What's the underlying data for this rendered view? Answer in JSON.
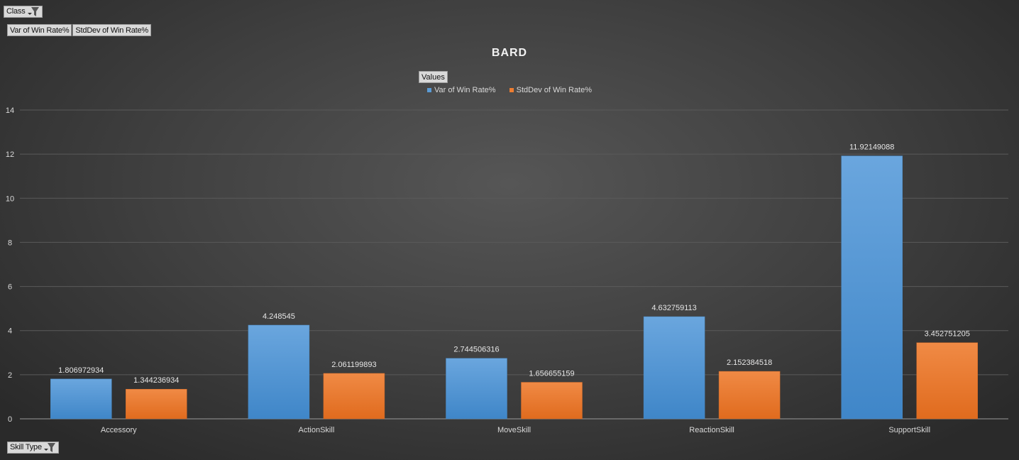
{
  "filters": {
    "class_label": "Class",
    "skill_type_label": "Skill Type"
  },
  "value_fields": [
    "Var of Win Rate%",
    "StdDev of Win Rate%"
  ],
  "legend_button": "Values",
  "colors": {
    "var": "#5b9bd5",
    "std": "#ed7d31"
  },
  "chart_data": {
    "type": "bar",
    "title": "BARD",
    "categories": [
      "Accessory",
      "ActionSkill",
      "MoveSkill",
      "ReactionSkill",
      "SupportSkill"
    ],
    "series": [
      {
        "name": "Var of Win Rate%",
        "values": [
          1.806972934,
          4.248545,
          2.744506316,
          4.632759113,
          11.92149088
        ],
        "labels": [
          "1.806972934",
          "4.248545",
          "2.744506316",
          "4.632759113",
          "11.92149088"
        ]
      },
      {
        "name": "StdDev of Win Rate%",
        "values": [
          1.344236934,
          2.061199893,
          1.656655159,
          2.152384518,
          3.452751205
        ],
        "labels": [
          "1.344236934",
          "2.061199893",
          "1.656655159",
          "2.152384518",
          "3.452751205"
        ]
      }
    ],
    "ylim": [
      0,
      14
    ],
    "yticks": [
      "0",
      "2",
      "4",
      "6",
      "8",
      "10",
      "12",
      "14"
    ],
    "xlabel": "",
    "ylabel": "",
    "grid": true,
    "legend": "top-center"
  }
}
